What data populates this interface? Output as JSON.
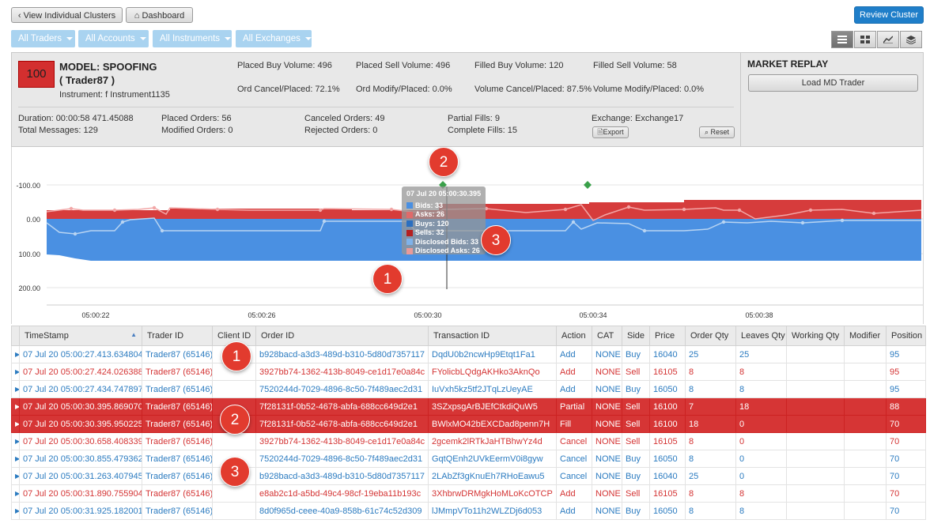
{
  "toolbar": {
    "view_clusters": "View Individual Clusters",
    "dashboard": "Dashboard",
    "review_cluster": "Review Cluster"
  },
  "filters": [
    "All Traders",
    "All Accounts",
    "All Instruments",
    "All Exchanges"
  ],
  "colors": {
    "sell": "#d43434",
    "buy": "#2b7bc0",
    "bids_band": "#4a90e2",
    "asks_band": "#d63c3c",
    "callout": "#e23b2e"
  },
  "summary": {
    "score": "100",
    "model_title": "MODEL: SPOOFING",
    "trader": "( Trader87 )",
    "instrument": "Instrument: f Instrument1135",
    "placed_buy": "Placed Buy Volume: 496",
    "placed_sell": "Placed Sell Volume: 496",
    "filled_buy": "Filled Buy Volume: 120",
    "filled_sell": "Filled Sell Volume: 58",
    "ord_cancel": "Ord Cancel/Placed: 72.1%",
    "ord_modify": "Ord Modify/Placed: 0.0%",
    "vol_cancel": "Volume Cancel/Placed: 87.5%",
    "vol_modify": "Volume Modify/Placed: 0.0%",
    "duration": "Duration: 00:00:58 471.45088",
    "total_messages": "Total Messages: 129",
    "placed_orders": "Placed Orders: 56",
    "modified_orders": "Modified Orders: 0",
    "canceled_orders": "Canceled Orders: 49",
    "rejected_orders": "Rejected Orders: 0",
    "partial_fills": "Partial Fills: 9",
    "complete_fills": "Complete Fills: 15",
    "exchange": "Exchange: Exchange17",
    "export": "Export",
    "reset": "Reset"
  },
  "market_replay": {
    "title": "MARKET REPLAY",
    "load_button": "Load MD Trader"
  },
  "chart_data": {
    "type": "area",
    "y_ticks": [
      "-100.00",
      "0.00",
      "100.00",
      "200.00"
    ],
    "x_ticks": [
      "05:00:22",
      "05:00:26",
      "05:00:30",
      "05:00:34",
      "05:00:38"
    ],
    "tooltip": {
      "time": "07 Jul 20 05:00:30.395",
      "items": [
        {
          "label": "Bids: 33",
          "color": "#4a90e2"
        },
        {
          "label": "Asks: 26",
          "color": "#e06a6a"
        },
        {
          "label": "Buys: 120",
          "color": "#2b6fc0"
        },
        {
          "label": "Sells: 32",
          "color": "#b52020"
        },
        {
          "label": "Disclosed Bids: 33",
          "color": "#7fb2ea"
        },
        {
          "label": "Disclosed Asks: 26",
          "color": "#e89a9a"
        }
      ]
    }
  },
  "callouts": [
    "2",
    "3",
    "1",
    "1",
    "2",
    "3"
  ],
  "table": {
    "columns": [
      "TimeStamp",
      "Trader ID",
      "Client ID",
      "Order ID",
      "Transaction ID",
      "Action",
      "CAT",
      "Side",
      "Price",
      "Order Qty",
      "Leaves Qty",
      "Working Qty",
      "Modifier",
      "Position"
    ],
    "rows": [
      {
        "side_class": "buy",
        "cells": [
          "07 Jul 20 05:00:27.413.634804",
          "Trader87 (65146)",
          "",
          "b928bacd-a3d3-489d-b310-5d80d7357117",
          "DqdU0b2ncwHp9Etqt1Fa1",
          "Add",
          "NONE",
          "Buy",
          "16040",
          "25",
          "25",
          "",
          "",
          "95"
        ]
      },
      {
        "side_class": "sell",
        "cells": [
          "07 Jul 20 05:00:27.424.026388",
          "Trader87 (65146)",
          "",
          "3927bb74-1362-413b-8049-ce1d17e0a84c",
          "FYolicbLQdgAKHko3AknQo",
          "Add",
          "NONE",
          "Sell",
          "16105",
          "8",
          "8",
          "",
          "",
          "95"
        ]
      },
      {
        "side_class": "buy",
        "cells": [
          "07 Jul 20 05:00:27.434.747897",
          "Trader87 (65146)",
          "",
          "7520244d-7029-4896-8c50-7f489aec2d31",
          "IuVxh5kz5tf2JTqLzUeyAE",
          "Add",
          "NONE",
          "Buy",
          "16050",
          "8",
          "8",
          "",
          "",
          "95"
        ]
      },
      {
        "side_class": "hl",
        "cells": [
          "07 Jul 20 05:00:30.395.869070",
          "Trader87 (65146)",
          "",
          "7f28131f-0b52-4678-abfa-688cc649d2e1",
          "3SZxpsgArBJEfCtkdiQuW5",
          "Partial",
          "NONE",
          "Sell",
          "16100",
          "7",
          "18",
          "",
          "",
          "88"
        ]
      },
      {
        "side_class": "hl",
        "cells": [
          "07 Jul 20 05:00:30.395.950225",
          "Trader87 (65146)",
          "",
          "7f28131f-0b52-4678-abfa-688cc649d2e1",
          "BWlxMO42bEXCDad8penn7H",
          "Fill",
          "NONE",
          "Sell",
          "16100",
          "18",
          "0",
          "",
          "",
          "70"
        ]
      },
      {
        "side_class": "sell",
        "cells": [
          "07 Jul 20 05:00:30.658.408339",
          "Trader87 (65146)",
          "",
          "3927bb74-1362-413b-8049-ce1d17e0a84c",
          "2gcemk2lRTkJaHTBhwYz4d",
          "Cancel",
          "NONE",
          "Sell",
          "16105",
          "8",
          "0",
          "",
          "",
          "70"
        ]
      },
      {
        "side_class": "buy",
        "cells": [
          "07 Jul 20 05:00:30.855.479362",
          "Trader87 (65146)",
          "",
          "7520244d-7029-4896-8c50-7f489aec2d31",
          "GqtQEnh2UVkEermV0i8gyw",
          "Cancel",
          "NONE",
          "Buy",
          "16050",
          "8",
          "0",
          "",
          "",
          "70"
        ]
      },
      {
        "side_class": "buy",
        "cells": [
          "07 Jul 20 05:00:31.263.407945",
          "Trader87 (65146)",
          "",
          "b928bacd-a3d3-489d-b310-5d80d7357117",
          "2LAbZf3gKnuEh7RHoEawu5",
          "Cancel",
          "NONE",
          "Buy",
          "16040",
          "25",
          "0",
          "",
          "",
          "70"
        ]
      },
      {
        "side_class": "sell",
        "cells": [
          "07 Jul 20 05:00:31.890.755904",
          "Trader87 (65146)",
          "",
          "e8ab2c1d-a5bd-49c4-98cf-19eba11b193c",
          "3XhbrwDRMgkHoMLoKcOTCP",
          "Add",
          "NONE",
          "Sell",
          "16105",
          "8",
          "8",
          "",
          "",
          "70"
        ]
      },
      {
        "side_class": "buy",
        "cells": [
          "07 Jul 20 05:00:31.925.182001",
          "Trader87 (65146)",
          "",
          "8d0f965d-ceee-40a9-858b-61c74c52d309",
          "lJMmpVTo11h2WLZDj6d053",
          "Add",
          "NONE",
          "Buy",
          "16050",
          "8",
          "8",
          "",
          "",
          "70"
        ]
      }
    ]
  }
}
